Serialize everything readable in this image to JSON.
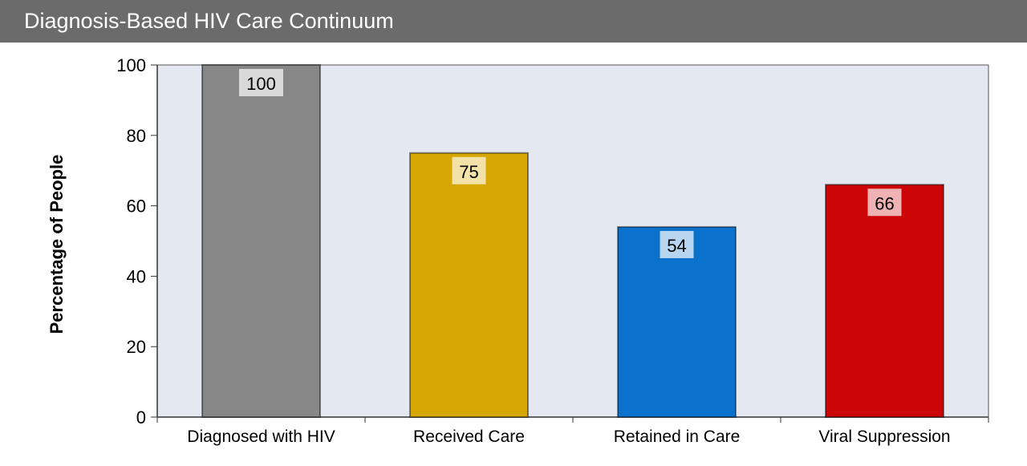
{
  "header": {
    "title": "Diagnosis-Based HIV Care Continuum"
  },
  "chart_data": {
    "type": "bar",
    "title": "Diagnosis-Based HIV Care Continuum",
    "ylabel": "Percentage of People",
    "xlabel": "",
    "ylim": [
      0,
      100
    ],
    "yticks": [
      0,
      20,
      40,
      60,
      80,
      100
    ],
    "categories": [
      "Diagnosed with HIV",
      "Received Care",
      "Retained in Care",
      "Viral Suppression"
    ],
    "values": [
      100,
      75,
      54,
      66
    ],
    "colors": [
      "#878787",
      "#d6a603",
      "#0a72cc",
      "#cc0606"
    ],
    "label_bg": [
      "#d9d9d9",
      "#f2e2a8",
      "#b8d5ef",
      "#f0b3b3"
    ],
    "plot_bg": "#e4e9f1",
    "grid": false,
    "data_labels": true
  }
}
